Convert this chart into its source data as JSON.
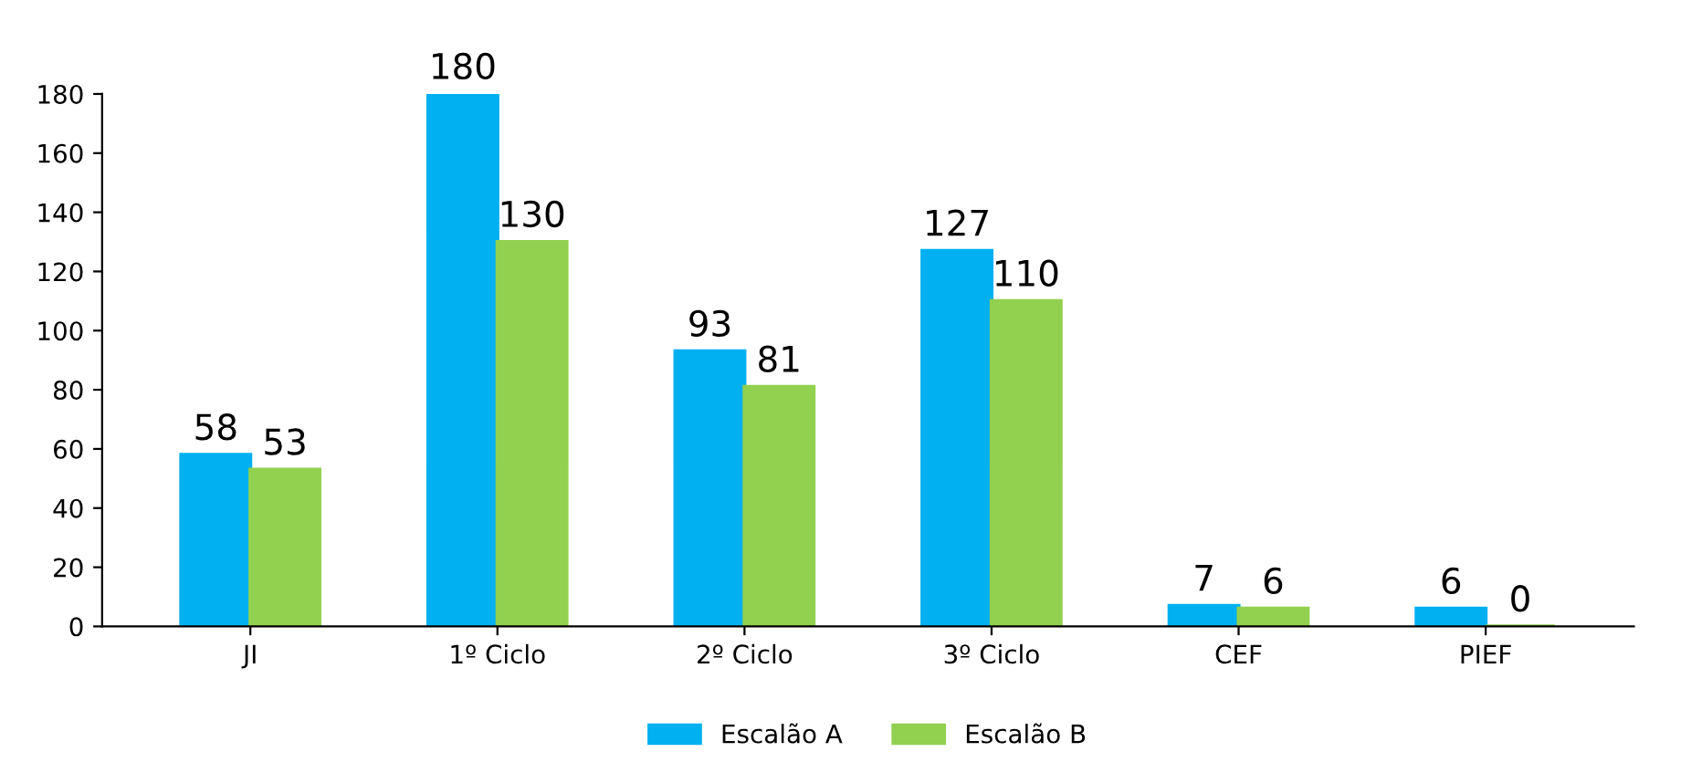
{
  "chart_data": {
    "type": "bar",
    "categories": [
      "JI",
      "1º Ciclo",
      "2º Ciclo",
      "3º Ciclo",
      "CEF",
      "PIEF"
    ],
    "series": [
      {
        "name": "Escalão A",
        "color": "#00b0f0",
        "values": [
          58,
          180,
          93,
          127,
          7,
          6
        ]
      },
      {
        "name": "Escalão B",
        "color": "#92d050",
        "values": [
          53,
          130,
          81,
          110,
          6,
          0
        ]
      }
    ],
    "ylim": [
      0,
      180
    ],
    "yticks": [
      0,
      20,
      40,
      60,
      80,
      100,
      120,
      140,
      160,
      180
    ],
    "grid": false,
    "legend": "bottom",
    "data_labels": true
  }
}
